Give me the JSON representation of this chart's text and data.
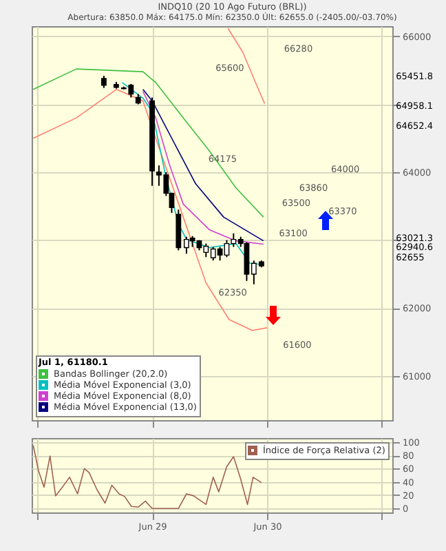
{
  "chart_data": [
    {
      "type": "candlestick",
      "title": "INDQ10 (20 10 Ago Futuro (BRL))",
      "subtitle": "Abertura: 63850.0 Máx: 64175.0 Mín: 62350.0 Últ: 62655.0 (-2405.00/-03.70%)",
      "legend_title": "Jul 1, 61180.1",
      "legend": "bottom left",
      "grid": true,
      "tick_labels": "y",
      "xlim": [
        "--06-27T22:50",
        "--07-01T02:10"
      ],
      "xticks": [
        {
          "value": "--06-28",
          "label": null
        },
        {
          "value": "--06-29",
          "label": "Jun 29"
        },
        {
          "value": "--06-30",
          "label": "Jun 30"
        },
        {
          "value": "--07-01",
          "label": null
        }
      ],
      "ylim": [
        60350,
        66150
      ],
      "yticks": [
        66000,
        {
          "value": 65000,
          "label": null
        },
        64000,
        {
          "value": 63000,
          "label": null
        },
        62000,
        61000
      ],
      "x": [
        "--06-28T13:55",
        "--06-28T16:30",
        "--06-28T18:05",
        "--06-28T19:35",
        "--06-28T21:05",
        "--06-29T00:00",
        "--06-29T01:25",
        "--06-29T02:55",
        "--06-29T04:05",
        "--06-29T05:30",
        "--06-29T07:10",
        "--06-29T08:25",
        "--06-29T09:50",
        "--06-29T11:15",
        "--06-29T12:45",
        "--06-29T14:10",
        "--06-29T15:35",
        "--06-29T17:00",
        "--06-29T18:30",
        "--06-29T19:45",
        "--06-29T21:15",
        "--06-29T22:50"
      ],
      "ohlc": [
        [
          65380,
          65420,
          65240,
          65280
        ],
        [
          65290,
          65330,
          65230,
          65250
        ],
        [
          65240,
          65260,
          65220,
          65230
        ],
        [
          65280,
          65300,
          65100,
          65150
        ],
        [
          65100,
          65150,
          65000,
          65020
        ],
        [
          65050,
          65100,
          63800,
          64020
        ],
        [
          64000,
          64100,
          63800,
          63960
        ],
        [
          63960,
          64000,
          63650,
          63690
        ],
        [
          63690,
          63700,
          63400,
          63480
        ],
        [
          63380,
          63450,
          62850,
          62890
        ],
        [
          62890,
          63050,
          62800,
          63010
        ],
        [
          63030,
          63060,
          62900,
          62990
        ],
        [
          62990,
          63000,
          62850,
          62890
        ],
        [
          62820,
          62950,
          62750,
          62910
        ],
        [
          62740,
          62900,
          62700,
          62870
        ],
        [
          62870,
          62900,
          62700,
          62780
        ],
        [
          62780,
          63000,
          62750,
          62950
        ],
        [
          62950,
          63100,
          62900,
          63010
        ],
        [
          63010,
          63050,
          62900,
          62950
        ],
        [
          62950,
          62970,
          62400,
          62500
        ],
        [
          62500,
          62700,
          62350,
          62660
        ],
        [
          62680,
          62700,
          62600,
          62620
        ]
      ],
      "series": [
        {
          "name": "Bandas Bollinger (20,2.0)",
          "type": "line",
          "color": "#40c040",
          "x": [
            "--06-27T23:10",
            "--06-28T08:10",
            "--06-28T22:05",
            "--06-29T00:45",
            "--06-29T06:30",
            "--06-29T12:00",
            "--06-29T17:30",
            "--06-29T23:15"
          ],
          "values": [
            65220,
            65520,
            65480,
            65320,
            64800,
            64310,
            63770,
            63340
          ]
        },
        {
          "type": "line",
          "color": "#ff8070",
          "x": [
            "--06-29T15:50",
            "--06-29T18:55",
            "--06-29T21:50",
            "--06-29T23:30"
          ],
          "values": [
            66120,
            65770,
            65280,
            65010
          ]
        },
        {
          "type": "line",
          "color": "#ff8070",
          "x": [
            "--06-27T23:10",
            "--06-28T08:10",
            "--06-28T16:35",
            "--06-28T22:05",
            "--06-29T00:45",
            "--06-29T06:30",
            "--06-29T11:15",
            "--06-29T16:05",
            "--06-29T20:55",
            "--06-30T00:00"
          ],
          "values": [
            64500,
            64800,
            65220,
            65050,
            64500,
            63340,
            62370,
            61830,
            61670,
            61710
          ]
        },
        {
          "name": "Média Móvel Exponencial (3,0)",
          "type": "line",
          "color": "#00c0c0",
          "x": [
            "--06-28T17:45",
            "--06-28T22:05",
            "--06-29T00:00",
            "--06-29T02:55",
            "--06-29T05:30",
            "--06-29T07:10",
            "--06-29T12:00",
            "--06-29T17:30",
            "--06-29T20:25",
            "--06-29T23:15"
          ],
          "values": [
            65320,
            65090,
            64890,
            63920,
            63240,
            63010,
            62890,
            62950,
            62660,
            62640
          ]
        },
        {
          "name": "Média Móvel Exponencial (8,0)",
          "type": "line",
          "color": "#d040d0",
          "x": [
            "--06-28T22:05",
            "--06-29T00:45",
            "--06-29T03:35",
            "--06-29T06:30",
            "--06-29T12:00",
            "--06-29T17:30",
            "--06-29T23:15"
          ],
          "values": [
            65190,
            64800,
            64120,
            63530,
            63150,
            62990,
            62940
          ]
        },
        {
          "name": "Média Móvel Exponencial (13,0)",
          "type": "line",
          "color": "#000080",
          "x": [
            "--06-28T22:05",
            "--06-29T00:00",
            "--06-29T05:30",
            "--06-29T09:05",
            "--06-29T14:55",
            "--06-29T23:15"
          ],
          "values": [
            65220,
            65050,
            64310,
            63830,
            63340,
            62990
          ]
        }
      ],
      "annotations": [
        "65600",
        "66280",
        "64175",
        "64000",
        "63860",
        "63500",
        "63370",
        "63100",
        {
          "text": "62350",
          "x": "--06-29T21:15",
          "y": 62350
        },
        "61600",
        "65451.8",
        "64958.1",
        "64652.4",
        "63021.3",
        "62940.6",
        "62655"
      ]
    },
    {
      "type": "line",
      "legend": "top right",
      "grid": true,
      "xlim": [
        "--06-27T22:50",
        "--07-01T02:10"
      ],
      "xticks": [
        {
          "value": "--06-28",
          "label": null
        },
        {
          "value": "--06-29",
          "label": "Jun 29"
        },
        {
          "value": "--06-30",
          "label": "Jun 30"
        },
        {
          "value": "--07-01",
          "label": null
        }
      ],
      "ylim": [
        -6,
        106
      ],
      "yticks": [
        0,
        20,
        40,
        60,
        80,
        100
      ],
      "series": [
        {
          "name": "Índice de Força Relativa (2)",
          "color": "#a06050",
          "x": [
            "--06-27T23:10",
            "--06-28T00:15",
            "--06-28T01:25",
            "--06-28T02:40",
            "--06-28T03:50",
            "--06-28T05:15",
            "--06-28T06:45",
            "--06-28T08:25",
            "--06-28T09:50",
            "--06-28T10:50",
            "--06-28T12:30",
            "--06-28T14:10",
            "--06-28T15:35",
            "--06-28T17:05",
            "--06-28T18:15",
            "--06-28T19:40",
            "--06-28T21:05",
            "--06-28T22:35",
            "--06-29T00:00",
            "--06-29T05:30",
            "--06-29T07:10",
            "--06-29T08:40",
            "--06-29T11:15",
            "--06-29T12:45",
            "--06-29T13:55",
            "--06-29T15:35",
            "--06-29T17:00",
            "--06-29T18:30",
            "--06-29T19:55",
            "--06-29T21:05",
            "--06-29T22:50"
          ],
          "values": [
            95,
            57,
            32,
            79,
            19,
            32,
            47,
            22,
            60,
            54,
            28,
            8,
            35,
            22,
            18,
            3,
            2,
            11,
            0,
            0,
            22,
            19,
            6,
            47,
            25,
            63,
            78,
            44,
            6,
            47,
            39
          ]
        }
      ]
    }
  ]
}
